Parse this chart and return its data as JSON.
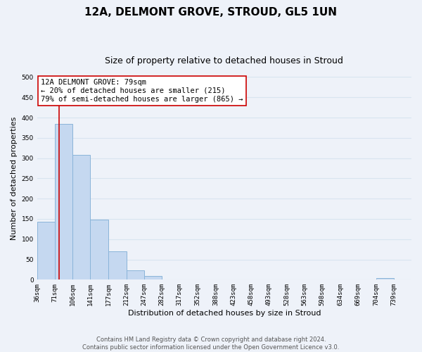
{
  "title": "12A, DELMONT GROVE, STROUD, GL5 1UN",
  "subtitle": "Size of property relative to detached houses in Stroud",
  "xlabel": "Distribution of detached houses by size in Stroud",
  "ylabel": "Number of detached properties",
  "bar_edges": [
    36,
    71,
    106,
    141,
    177,
    212,
    247,
    282,
    317,
    352,
    388,
    423,
    458,
    493,
    528,
    563,
    598,
    634,
    669,
    704,
    739
  ],
  "bar_heights": [
    143,
    385,
    308,
    149,
    70,
    24,
    9,
    0,
    0,
    0,
    0,
    0,
    0,
    0,
    0,
    0,
    0,
    0,
    0,
    4
  ],
  "bar_color": "#c5d8f0",
  "bar_edgecolor": "#8ab4d9",
  "property_line_x": 79,
  "property_line_color": "#cc0000",
  "annotation_title": "12A DELMONT GROVE: 79sqm",
  "annotation_line1": "← 20% of detached houses are smaller (215)",
  "annotation_line2": "79% of semi-detached houses are larger (865) →",
  "annotation_box_facecolor": "#ffffff",
  "annotation_box_edgecolor": "#cc0000",
  "ylim": [
    0,
    500
  ],
  "yticks": [
    0,
    50,
    100,
    150,
    200,
    250,
    300,
    350,
    400,
    450,
    500
  ],
  "tick_labels": [
    "36sqm",
    "71sqm",
    "106sqm",
    "141sqm",
    "177sqm",
    "212sqm",
    "247sqm",
    "282sqm",
    "317sqm",
    "352sqm",
    "388sqm",
    "423sqm",
    "458sqm",
    "493sqm",
    "528sqm",
    "563sqm",
    "598sqm",
    "634sqm",
    "669sqm",
    "704sqm",
    "739sqm"
  ],
  "footer_line1": "Contains HM Land Registry data © Crown copyright and database right 2024.",
  "footer_line2": "Contains public sector information licensed under the Open Government Licence v3.0.",
  "bg_color": "#eef2f9",
  "plot_bg_color": "#eef2f9",
  "grid_color": "#d8e4f0",
  "title_fontsize": 11,
  "subtitle_fontsize": 9,
  "label_fontsize": 8,
  "tick_fontsize": 6.5,
  "annotation_fontsize": 7.5,
  "footer_fontsize": 6
}
